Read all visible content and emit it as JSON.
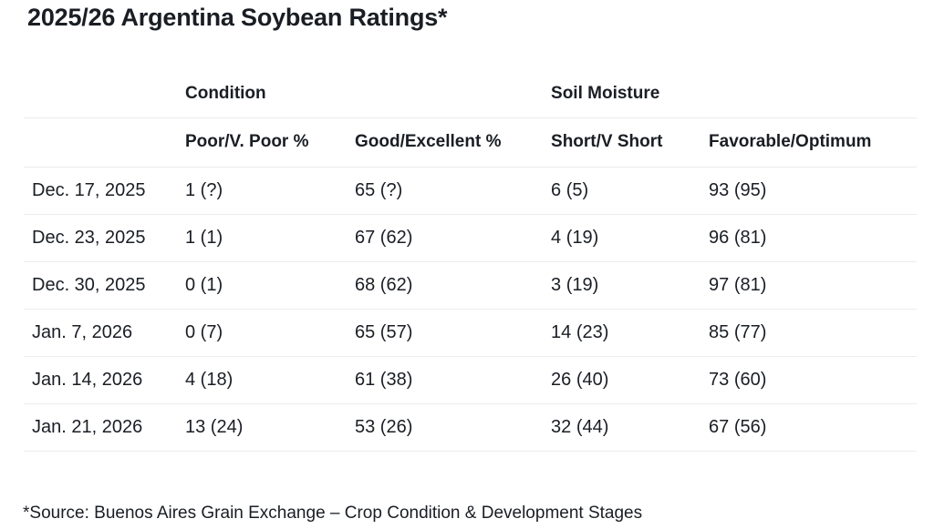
{
  "title": "2025/26 Argentina Soybean Ratings*",
  "footnote": "*Source: Buenos Aires Grain Exchange – Crop Condition & Development Stages",
  "colors": {
    "background": "#ffffff",
    "text": "#1a1e24",
    "divider": "#eaecee"
  },
  "chart_data": {
    "type": "table",
    "title": "2025/26 Argentina Soybean Ratings*",
    "group_headers": {
      "condition": "Condition",
      "soil_moisture": "Soil Moisture"
    },
    "columns": [
      "Poor/V. Poor %",
      "Good/Excellent %",
      "Short/V Short",
      "Favorable/Optimum"
    ],
    "rows": [
      {
        "date": "Dec. 17, 2025",
        "cells": [
          "1 (?)",
          "65 (?)",
          "6 (5)",
          "93 (95)"
        ]
      },
      {
        "date": "Dec. 23, 2025",
        "cells": [
          "1 (1)",
          "67 (62)",
          "4 (19)",
          "96 (81)"
        ]
      },
      {
        "date": "Dec. 30, 2025",
        "cells": [
          "0 (1)",
          "68 (62)",
          "3 (19)",
          "97 (81)"
        ]
      },
      {
        "date": "Jan. 7, 2026",
        "cells": [
          "0 (7)",
          "65 (57)",
          "14 (23)",
          "85 (77)"
        ]
      },
      {
        "date": "Jan. 14, 2026",
        "cells": [
          "4 (18)",
          "61 (38)",
          "26 (40)",
          "73 (60)"
        ]
      },
      {
        "date": "Jan. 21, 2026",
        "cells": [
          "13 (24)",
          "53 (26)",
          "32 (44)",
          "67 (56)"
        ]
      }
    ],
    "footnote": "*Source: Buenos Aires Grain Exchange – Crop Condition & Development Stages"
  }
}
